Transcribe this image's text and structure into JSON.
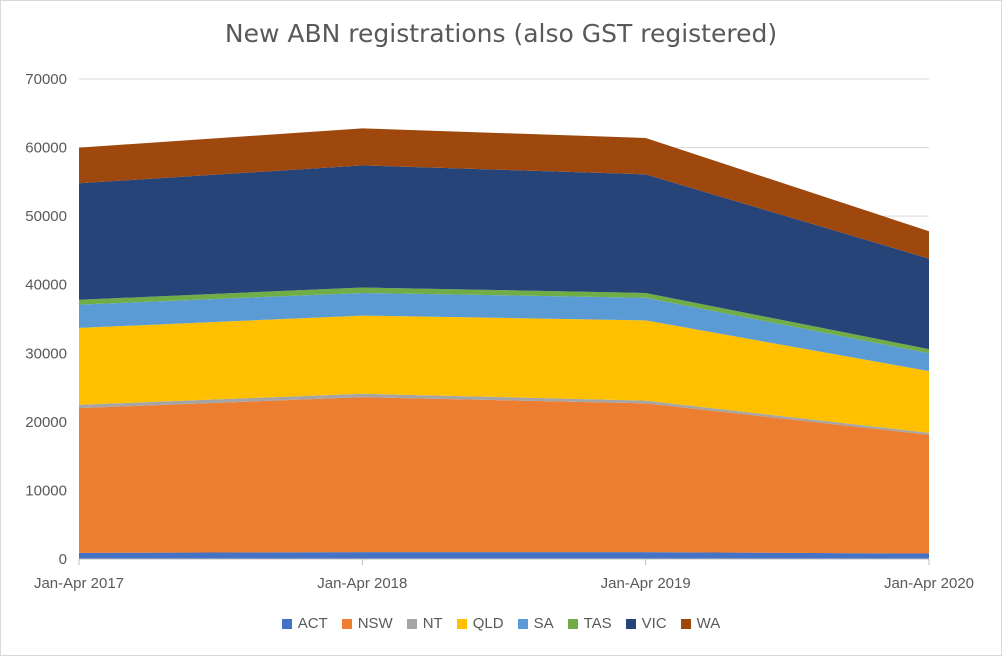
{
  "chart_data": {
    "type": "area",
    "stacked": true,
    "title": "New ABN registrations (also GST registered)",
    "xlabel": "",
    "ylabel": "",
    "ylim": [
      0,
      70000
    ],
    "yticks": [
      0,
      10000,
      20000,
      30000,
      40000,
      50000,
      60000,
      70000
    ],
    "categories": [
      "Jan-Apr 2017",
      "Jan-Apr 2018",
      "Jan-Apr 2019",
      "Jan-Apr 2020"
    ],
    "grid": true,
    "legend_position": "bottom",
    "series": [
      {
        "name": "ACT",
        "color": "#4472c4",
        "values": [
          900,
          1000,
          1000,
          800
        ]
      },
      {
        "name": "NSW",
        "color": "#ed7d31",
        "values": [
          21100,
          22600,
          21700,
          17300
        ]
      },
      {
        "name": "NT",
        "color": "#a5a5a5",
        "values": [
          500,
          500,
          400,
          300
        ]
      },
      {
        "name": "QLD",
        "color": "#ffc000",
        "values": [
          11200,
          11400,
          11700,
          9000
        ]
      },
      {
        "name": "SA",
        "color": "#5b9bd5",
        "values": [
          3400,
          3300,
          3300,
          2600
        ]
      },
      {
        "name": "TAS",
        "color": "#70ad47",
        "values": [
          700,
          800,
          700,
          600
        ]
      },
      {
        "name": "VIC",
        "color": "#264478",
        "values": [
          17000,
          17800,
          17300,
          13200
        ]
      },
      {
        "name": "WA",
        "color": "#9e480e",
        "values": [
          5200,
          5400,
          5300,
          4000
        ]
      }
    ]
  }
}
